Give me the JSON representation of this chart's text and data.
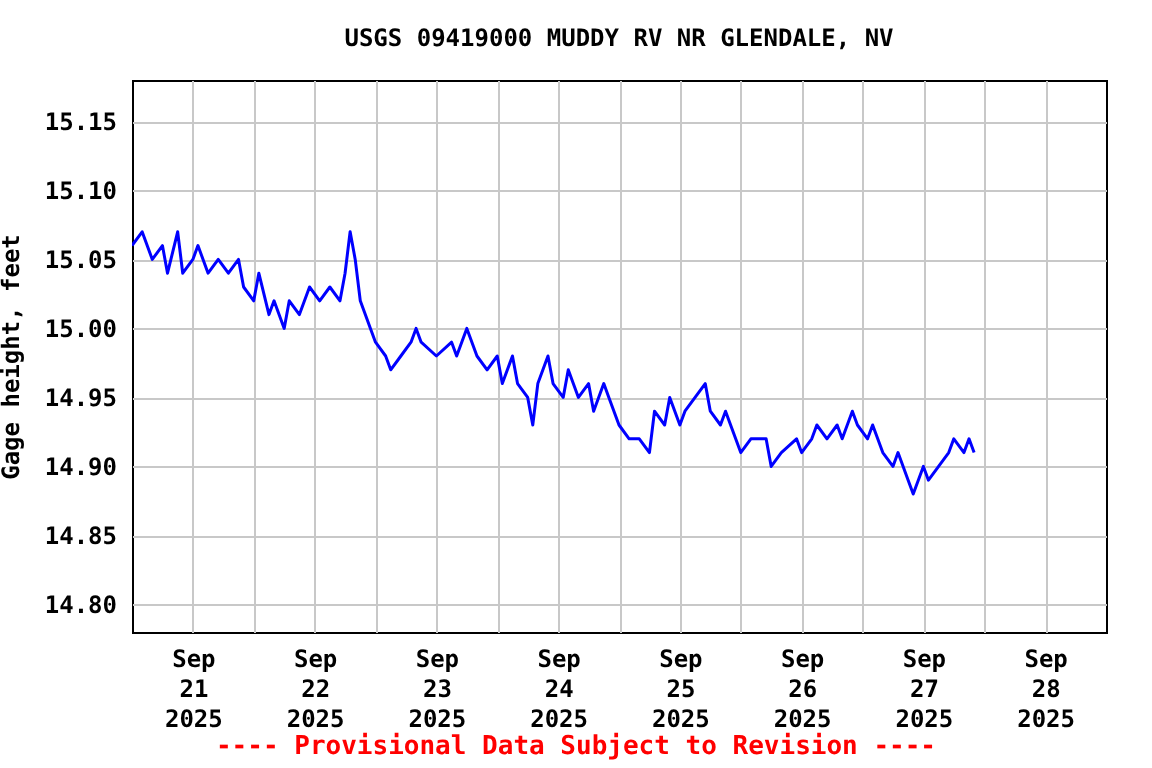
{
  "chart_data": {
    "type": "line",
    "title": "USGS 09419000 MUDDY RV NR GLENDALE, NV",
    "ylabel": "Gage height, feet",
    "annotations": [
      "---- Provisional Data Subject to Revision ----"
    ],
    "x": [
      "2025-09-21T00:00",
      "2025-09-21T02:00",
      "2025-09-21T04:00",
      "2025-09-21T06:00",
      "2025-09-21T07:00",
      "2025-09-21T09:00",
      "2025-09-21T10:00",
      "2025-09-21T12:00",
      "2025-09-21T13:00",
      "2025-09-21T15:00",
      "2025-09-21T17:00",
      "2025-09-21T19:00",
      "2025-09-21T21:00",
      "2025-09-21T22:00",
      "2025-09-22T00:00",
      "2025-09-22T01:00",
      "2025-09-22T03:00",
      "2025-09-22T04:00",
      "2025-09-22T06:00",
      "2025-09-22T07:00",
      "2025-09-22T09:00",
      "2025-09-22T11:00",
      "2025-09-22T13:00",
      "2025-09-22T15:00",
      "2025-09-22T17:00",
      "2025-09-22T18:00",
      "2025-09-22T19:00",
      "2025-09-22T20:00",
      "2025-09-22T21:00",
      "2025-09-22T23:00",
      "2025-09-23T00:00",
      "2025-09-23T02:00",
      "2025-09-23T03:00",
      "2025-09-23T05:00",
      "2025-09-23T07:00",
      "2025-09-23T08:00",
      "2025-09-23T09:00",
      "2025-09-23T12:00",
      "2025-09-23T15:00",
      "2025-09-23T16:00",
      "2025-09-23T18:00",
      "2025-09-23T20:00",
      "2025-09-23T22:00",
      "2025-09-24T00:00",
      "2025-09-24T01:00",
      "2025-09-24T03:00",
      "2025-09-24T04:00",
      "2025-09-24T06:00",
      "2025-09-24T07:00",
      "2025-09-24T08:00",
      "2025-09-24T10:00",
      "2025-09-24T11:00",
      "2025-09-24T13:00",
      "2025-09-24T14:00",
      "2025-09-24T16:00",
      "2025-09-24T18:00",
      "2025-09-24T19:00",
      "2025-09-24T21:00",
      "2025-09-24T22:00",
      "2025-09-25T00:00",
      "2025-09-25T02:00",
      "2025-09-25T04:00",
      "2025-09-25T06:00",
      "2025-09-25T07:00",
      "2025-09-25T09:00",
      "2025-09-25T10:00",
      "2025-09-25T12:00",
      "2025-09-25T13:00",
      "2025-09-25T15:00",
      "2025-09-25T17:00",
      "2025-09-25T18:00",
      "2025-09-25T20:00",
      "2025-09-25T21:00",
      "2025-09-25T23:00",
      "2025-09-26T00:00",
      "2025-09-26T02:00",
      "2025-09-26T05:00",
      "2025-09-26T06:00",
      "2025-09-26T08:00",
      "2025-09-26T11:00",
      "2025-09-26T12:00",
      "2025-09-26T14:00",
      "2025-09-26T15:00",
      "2025-09-26T17:00",
      "2025-09-26T19:00",
      "2025-09-26T20:00",
      "2025-09-26T22:00",
      "2025-09-26T23:00",
      "2025-09-27T01:00",
      "2025-09-27T02:00",
      "2025-09-27T04:00",
      "2025-09-27T06:00",
      "2025-09-27T07:00",
      "2025-09-27T09:00",
      "2025-09-27T10:00",
      "2025-09-27T12:00",
      "2025-09-27T13:00",
      "2025-09-27T15:00",
      "2025-09-27T17:00",
      "2025-09-27T18:00",
      "2025-09-27T20:00",
      "2025-09-27T21:00",
      "2025-09-27T22:00"
    ],
    "series": [
      {
        "color": "#0000ff",
        "values": [
          15.06,
          15.07,
          15.05,
          15.06,
          15.04,
          15.07,
          15.04,
          15.05,
          15.06,
          15.04,
          15.05,
          15.04,
          15.05,
          15.03,
          15.02,
          15.04,
          15.01,
          15.02,
          15.0,
          15.02,
          15.01,
          15.03,
          15.02,
          15.03,
          15.02,
          15.04,
          15.07,
          15.05,
          15.02,
          15.0,
          14.99,
          14.98,
          14.97,
          14.98,
          14.99,
          15.0,
          14.99,
          14.98,
          14.99,
          14.98,
          15.0,
          14.98,
          14.97,
          14.98,
          14.96,
          14.98,
          14.96,
          14.95,
          14.93,
          14.96,
          14.98,
          14.96,
          14.95,
          14.97,
          14.95,
          14.96,
          14.94,
          14.96,
          14.95,
          14.93,
          14.92,
          14.92,
          14.91,
          14.94,
          14.93,
          14.95,
          14.93,
          14.94,
          14.95,
          14.96,
          14.94,
          14.93,
          14.94,
          14.92,
          14.91,
          14.92,
          14.92,
          14.9,
          14.91,
          14.92,
          14.91,
          14.92,
          14.93,
          14.92,
          14.93,
          14.92,
          14.94,
          14.93,
          14.92,
          14.93,
          14.91,
          14.9,
          14.91,
          14.89,
          14.88,
          14.9,
          14.89,
          14.9,
          14.91,
          14.92,
          14.91,
          14.92,
          14.91
        ]
      }
    ],
    "xlim": [
      "2025-09-21T00:00",
      "2025-09-29T00:00"
    ],
    "xticks": [
      {
        "value": "2025-09-21T12:00",
        "label": "Sep 21 2025"
      },
      {
        "value": "2025-09-22T12:00",
        "label": "Sep 22 2025"
      },
      {
        "value": "2025-09-23T12:00",
        "label": "Sep 23 2025"
      },
      {
        "value": "2025-09-24T12:00",
        "label": "Sep 24 2025"
      },
      {
        "value": "2025-09-25T12:00",
        "label": "Sep 25 2025"
      },
      {
        "value": "2025-09-26T12:00",
        "label": "Sep 26 2025"
      },
      {
        "value": "2025-09-27T12:00",
        "label": "Sep 27 2025"
      },
      {
        "value": "2025-09-28T12:00",
        "label": "Sep 28 2025"
      },
      {
        "value": "2025-09-22T00:00",
        "label": null
      },
      {
        "value": "2025-09-23T00:00",
        "label": null
      },
      {
        "value": "2025-09-24T00:00",
        "label": null
      },
      {
        "value": "2025-09-25T00:00",
        "label": null
      },
      {
        "value": "2025-09-26T00:00",
        "label": null
      },
      {
        "value": "2025-09-27T00:00",
        "label": null
      },
      {
        "value": "2025-09-28T00:00",
        "label": null
      }
    ],
    "ylim": [
      14.78,
      15.18
    ],
    "yticks": [
      {
        "value": 14.8,
        "label": "14.80"
      },
      {
        "value": 14.85,
        "label": "14.85"
      },
      {
        "value": 14.9,
        "label": "14.90"
      },
      {
        "value": 14.95,
        "label": "14.95"
      },
      {
        "value": 15.0,
        "label": "15.00"
      },
      {
        "value": 15.05,
        "label": "15.05"
      },
      {
        "value": 15.1,
        "label": "15.10"
      },
      {
        "value": 15.15,
        "label": "15.15"
      }
    ],
    "grid": true,
    "marker": "none",
    "line_style": "solid"
  }
}
